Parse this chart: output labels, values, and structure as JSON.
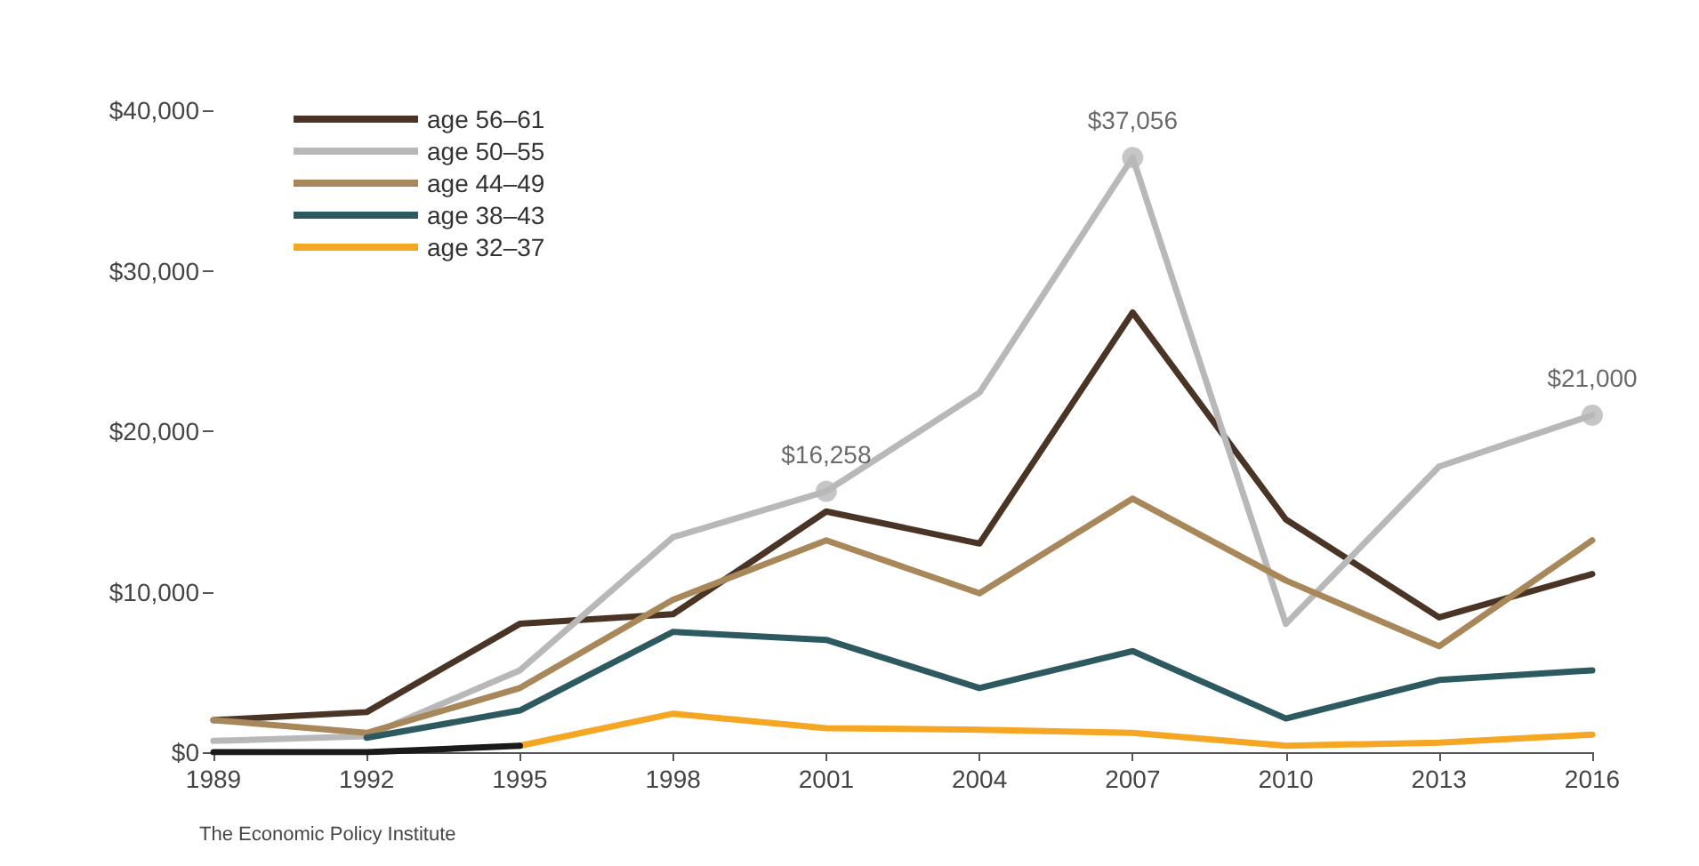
{
  "chart_data": {
    "type": "line",
    "categories": [
      "1989",
      "1992",
      "1995",
      "1998",
      "2001",
      "2004",
      "2007",
      "2010",
      "2013",
      "2016"
    ],
    "ylim": [
      0,
      40000
    ],
    "yticks": [
      {
        "value": 0,
        "label": "$0"
      },
      {
        "value": 10000,
        "label": "$10,000"
      },
      {
        "value": 20000,
        "label": "$20,000"
      },
      {
        "value": 30000,
        "label": "$30,000"
      },
      {
        "value": 40000,
        "label": "$40,000"
      }
    ],
    "grid": false,
    "legend": "top left",
    "line_style": "solid",
    "series": [
      {
        "name": "age 56–61",
        "color": "#4a3426",
        "values": [
          2000,
          2500,
          8000,
          8600,
          15000,
          13000,
          27400,
          14500,
          8400,
          11100
        ]
      },
      {
        "name": "age 50–55",
        "color": "#b8b8b8",
        "values": [
          700,
          1000,
          5100,
          13400,
          16258,
          22400,
          37056,
          8000,
          17800,
          21000
        ]
      },
      {
        "name": "age 44–49",
        "color": "#a8885a",
        "values": [
          2000,
          1200,
          4000,
          9500,
          13200,
          9900,
          15800,
          10700,
          6600,
          13200
        ]
      },
      {
        "name": "age 38–43",
        "color": "#2d5a60",
        "values": [
          null,
          900,
          2600,
          7500,
          7000,
          4000,
          6300,
          2100,
          4500,
          5100
        ]
      },
      {
        "name": "age 32–37",
        "color": "#f5a623",
        "values": [
          null,
          null,
          400,
          2400,
          1500,
          1400,
          1200,
          400,
          600,
          1100
        ]
      },
      {
        "type": "scatter",
        "color": "#b8b8b8",
        "values": [
          null,
          null,
          null,
          null,
          16258,
          null,
          37056,
          null,
          null,
          21000
        ],
        "marker": "circle",
        "value_labels": [
          null,
          null,
          null,
          null,
          "$16,258",
          null,
          "$37,056",
          null,
          null,
          "$21,000"
        ]
      },
      {
        "color": "#1a1a1a",
        "values": [
          0,
          0,
          400,
          null,
          null,
          null,
          null,
          null,
          null,
          null
        ]
      }
    ],
    "annotations": [
      "The Economic Policy Institute"
    ]
  }
}
